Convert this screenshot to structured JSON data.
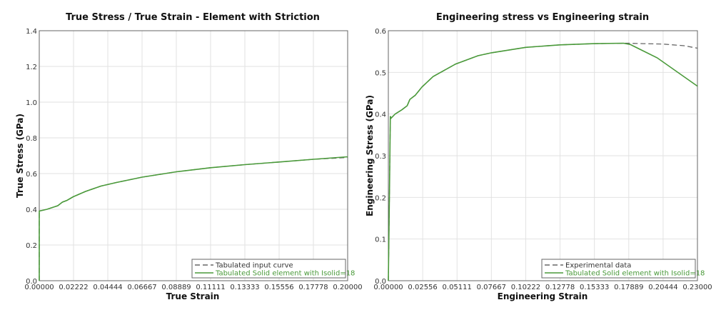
{
  "chart_data": [
    {
      "type": "line",
      "title": "True Stress / True Strain - Element with Striction",
      "xlabel": "True Strain",
      "ylabel": "True Stress (GPa)",
      "xlim": [
        0,
        0.2
      ],
      "ylim": [
        0,
        1.4
      ],
      "xticks": [
        "0.00000",
        "0.02222",
        "0.04444",
        "0.06667",
        "0.08889",
        "0.11111",
        "0.13333",
        "0.15556",
        "0.17778",
        "0.20000"
      ],
      "yticks": [
        "0.0",
        "0.2",
        "0.4",
        "0.6",
        "0.8",
        "1.0",
        "1.2",
        "1.4"
      ],
      "grid": true,
      "legend_position": "bottom-right",
      "series": [
        {
          "name": "Tabulated input curve",
          "color": "#666666",
          "dash": true,
          "x": [
            0,
            0,
            0.005,
            0.012,
            0.015,
            0.018,
            0.022,
            0.03,
            0.04,
            0.05,
            0.0667,
            0.0889,
            0.1111,
            0.1333,
            0.1556,
            0.1778,
            0.2
          ],
          "y": [
            0,
            0.39,
            0.4,
            0.42,
            0.44,
            0.45,
            0.47,
            0.5,
            0.53,
            0.55,
            0.58,
            0.61,
            0.633,
            0.65,
            0.665,
            0.68,
            0.69
          ]
        },
        {
          "name": "Tabulated Solid element with Isolid=18",
          "color": "#4a9a3a",
          "dash": false,
          "x": [
            0,
            0,
            0.005,
            0.012,
            0.015,
            0.018,
            0.022,
            0.03,
            0.04,
            0.05,
            0.0667,
            0.0889,
            0.1111,
            0.1333,
            0.1556,
            0.1778,
            0.2
          ],
          "y": [
            0,
            0.39,
            0.4,
            0.42,
            0.44,
            0.45,
            0.47,
            0.5,
            0.53,
            0.55,
            0.58,
            0.61,
            0.633,
            0.65,
            0.665,
            0.68,
            0.694
          ]
        }
      ]
    },
    {
      "type": "line",
      "title": "Engineering stress vs Engineering strain",
      "xlabel": "Engineering Strain",
      "ylabel": "Engineering Stress  (GPa)",
      "xlim": [
        0,
        0.23
      ],
      "ylim": [
        0,
        0.6
      ],
      "xticks": [
        "0.00000",
        "0.02556",
        "0.05111",
        "0.07667",
        "0.10222",
        "0.12778",
        "0.15333",
        "0.17889",
        "0.20444",
        "0.23000"
      ],
      "yticks": [
        "0.0",
        "0.1",
        "0.2",
        "0.3",
        "0.4",
        "0.5",
        "0.6"
      ],
      "grid": true,
      "legend_position": "bottom-right",
      "series": [
        {
          "name": "Experimental data",
          "color": "#666666",
          "dash": true,
          "x": [
            0,
            0.0008,
            0.0015,
            0.002,
            0.005,
            0.01,
            0.014,
            0.016,
            0.018,
            0.02,
            0.025,
            0.0333,
            0.05,
            0.0667,
            0.0767,
            0.1022,
            0.1278,
            0.1533,
            0.178,
            0.19,
            0.2044,
            0.22,
            0.23
          ],
          "y": [
            0,
            0.2,
            0.395,
            0.39,
            0.4,
            0.41,
            0.42,
            0.435,
            0.44,
            0.445,
            0.465,
            0.49,
            0.52,
            0.54,
            0.547,
            0.56,
            0.566,
            0.569,
            0.57,
            0.569,
            0.568,
            0.564,
            0.558
          ]
        },
        {
          "name": "Tabulated Solid element with Isolid=18",
          "color": "#4a9a3a",
          "dash": false,
          "x": [
            0,
            0.0008,
            0.0015,
            0.002,
            0.005,
            0.01,
            0.014,
            0.016,
            0.018,
            0.02,
            0.025,
            0.0333,
            0.05,
            0.0667,
            0.0767,
            0.1022,
            0.1278,
            0.1533,
            0.175,
            0.18,
            0.2,
            0.23
          ],
          "y": [
            0,
            0.2,
            0.395,
            0.39,
            0.4,
            0.41,
            0.42,
            0.435,
            0.44,
            0.445,
            0.465,
            0.49,
            0.52,
            0.54,
            0.547,
            0.56,
            0.566,
            0.569,
            0.57,
            0.567,
            0.535,
            0.467
          ]
        }
      ]
    }
  ]
}
